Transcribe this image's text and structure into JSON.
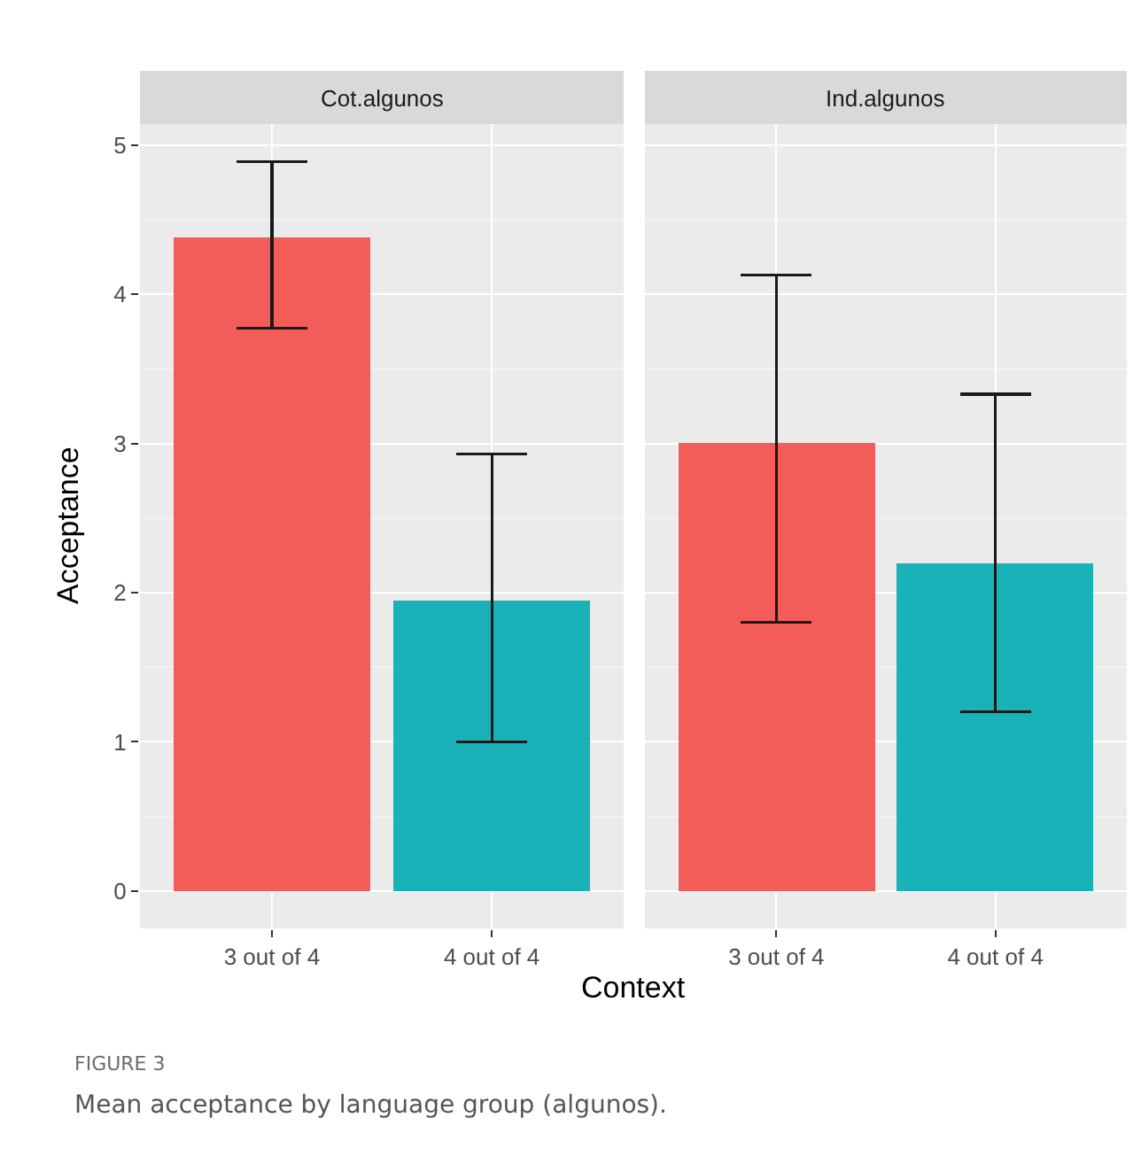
{
  "chart_data": [
    {
      "type": "bar",
      "title": "Cot.algunos",
      "xlabel": "Context",
      "ylabel": "Acceptance",
      "categories": [
        "3 out of 4",
        "4 out of 4"
      ],
      "values": [
        4.38,
        1.95
      ],
      "colors": [
        "#f25d5a",
        "#18b2b8"
      ],
      "errors": [
        [
          3.77,
          4.89
        ],
        [
          1.0,
          2.93
        ]
      ],
      "ylim": [
        -0.25,
        5.14
      ],
      "yticks": [
        0,
        1,
        2,
        3,
        4,
        5
      ],
      "grid": true,
      "annotations": [
        "FIGURE 3",
        "Mean acceptance by language group (algunos)."
      ]
    },
    {
      "type": "bar",
      "title": "Ind.algunos",
      "categories": [
        "3 out of 4",
        "4 out of 4"
      ],
      "values": [
        3.0,
        2.2
      ],
      "colors": [
        "#f25d5a",
        "#18b2b8"
      ],
      "errors": [
        [
          1.8,
          4.13
        ],
        [
          1.2,
          3.33
        ]
      ],
      "ylim": [
        -0.25,
        5.14
      ],
      "yticks": [
        0,
        1,
        2,
        3,
        4,
        5
      ],
      "grid": true,
      "tick_labels": "x"
    }
  ]
}
